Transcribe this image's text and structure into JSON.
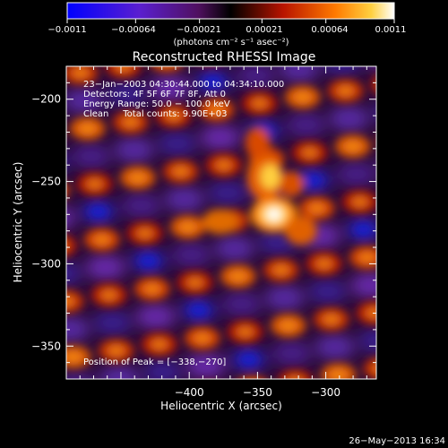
{
  "colorbar": {
    "tick_labels": [
      "−0.0011",
      "−0.00064",
      "−0.00021",
      "0.00021",
      "0.00064",
      "0.0011"
    ],
    "tick_values": [
      -0.0011,
      -0.00064,
      -0.00021,
      0.00021,
      0.00064,
      0.0011
    ],
    "range": [
      -0.0011,
      0.0011
    ],
    "units_text": "(photons cm⁻² s⁻¹ asec⁻²)"
  },
  "info": {
    "line1": "23−Jan−2003 04:30:44.000 to 04:34:10.000",
    "line2": "Detectors: 4F 5F 6F 7F 8F, Att 0",
    "line3": "Energy Range: 50.0 − 100.0 keV",
    "line4": "Clean     Total counts: 9.90E+03",
    "peak": "Position of Peak = [−338,−270]"
  },
  "footer": {
    "date": "26−May−2013 16:34"
  },
  "chart_data": {
    "type": "heatmap",
    "title": "Reconstructed RHESSI Image",
    "xlabel": "Heliocentric X (arcsec)",
    "ylabel": "Heliocentric Y (arcsec)",
    "xlim": [
      -490,
      -263
    ],
    "ylim": [
      -370,
      -180
    ],
    "x_tick_values": [
      -400,
      -350,
      -300
    ],
    "x_tick_labels": [
      "−400",
      "−350",
      "−300"
    ],
    "y_tick_values": [
      -200,
      -250,
      -300,
      -350
    ],
    "y_tick_labels": [
      "−200",
      "−250",
      "−300",
      "−350"
    ],
    "peak_position": [
      -338,
      -270
    ],
    "color_table": "red-temperature",
    "colors": {
      "negative_min": "#0000ff",
      "negative_mid": "#7a2fb0",
      "zero": "#000000",
      "positive_mid": "#d22a00",
      "positive_max": "#ffffff"
    }
  }
}
